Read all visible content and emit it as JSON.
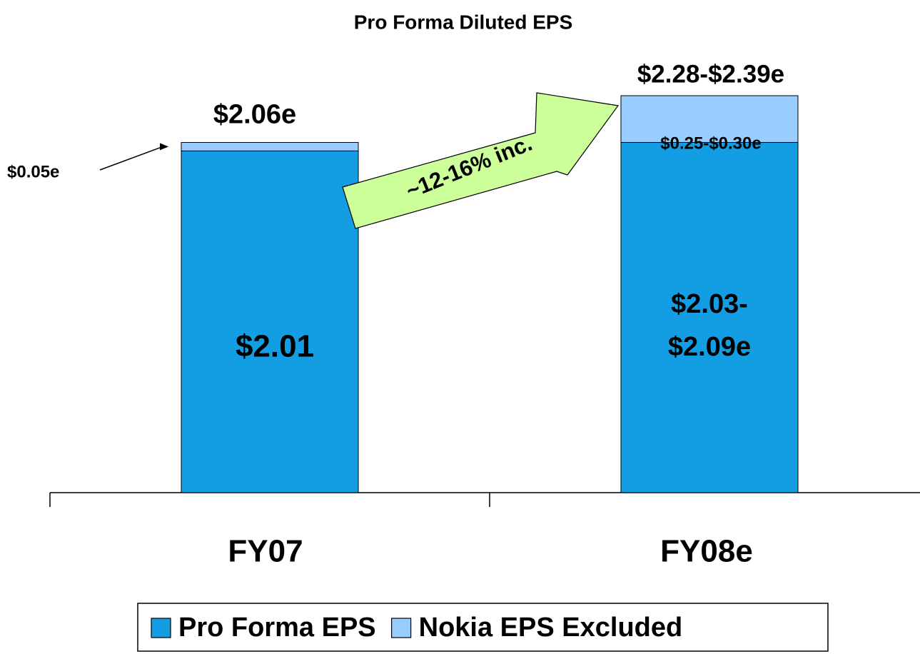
{
  "chart_data": {
    "type": "stacked_bar",
    "title": "Pro Forma Diluted EPS",
    "categories": [
      "FY07",
      "FY08e"
    ],
    "series": [
      {
        "name": "Pro Forma EPS",
        "color": "#139ee3",
        "values": [
          2.01,
          2.06
        ],
        "value_labels": [
          "$2.01",
          "$2.03-$2.09e"
        ]
      },
      {
        "name": "Nokia EPS Excluded",
        "color": "#99ccff",
        "values": [
          0.05,
          0.275
        ],
        "value_labels": [
          "$0.05e",
          "$0.25-$0.30e"
        ]
      }
    ],
    "total_labels": [
      "$2.06e",
      "$2.28-$2.39e"
    ],
    "annotation": "~12-16% inc.",
    "annotation_color": "#ccff99"
  }
}
